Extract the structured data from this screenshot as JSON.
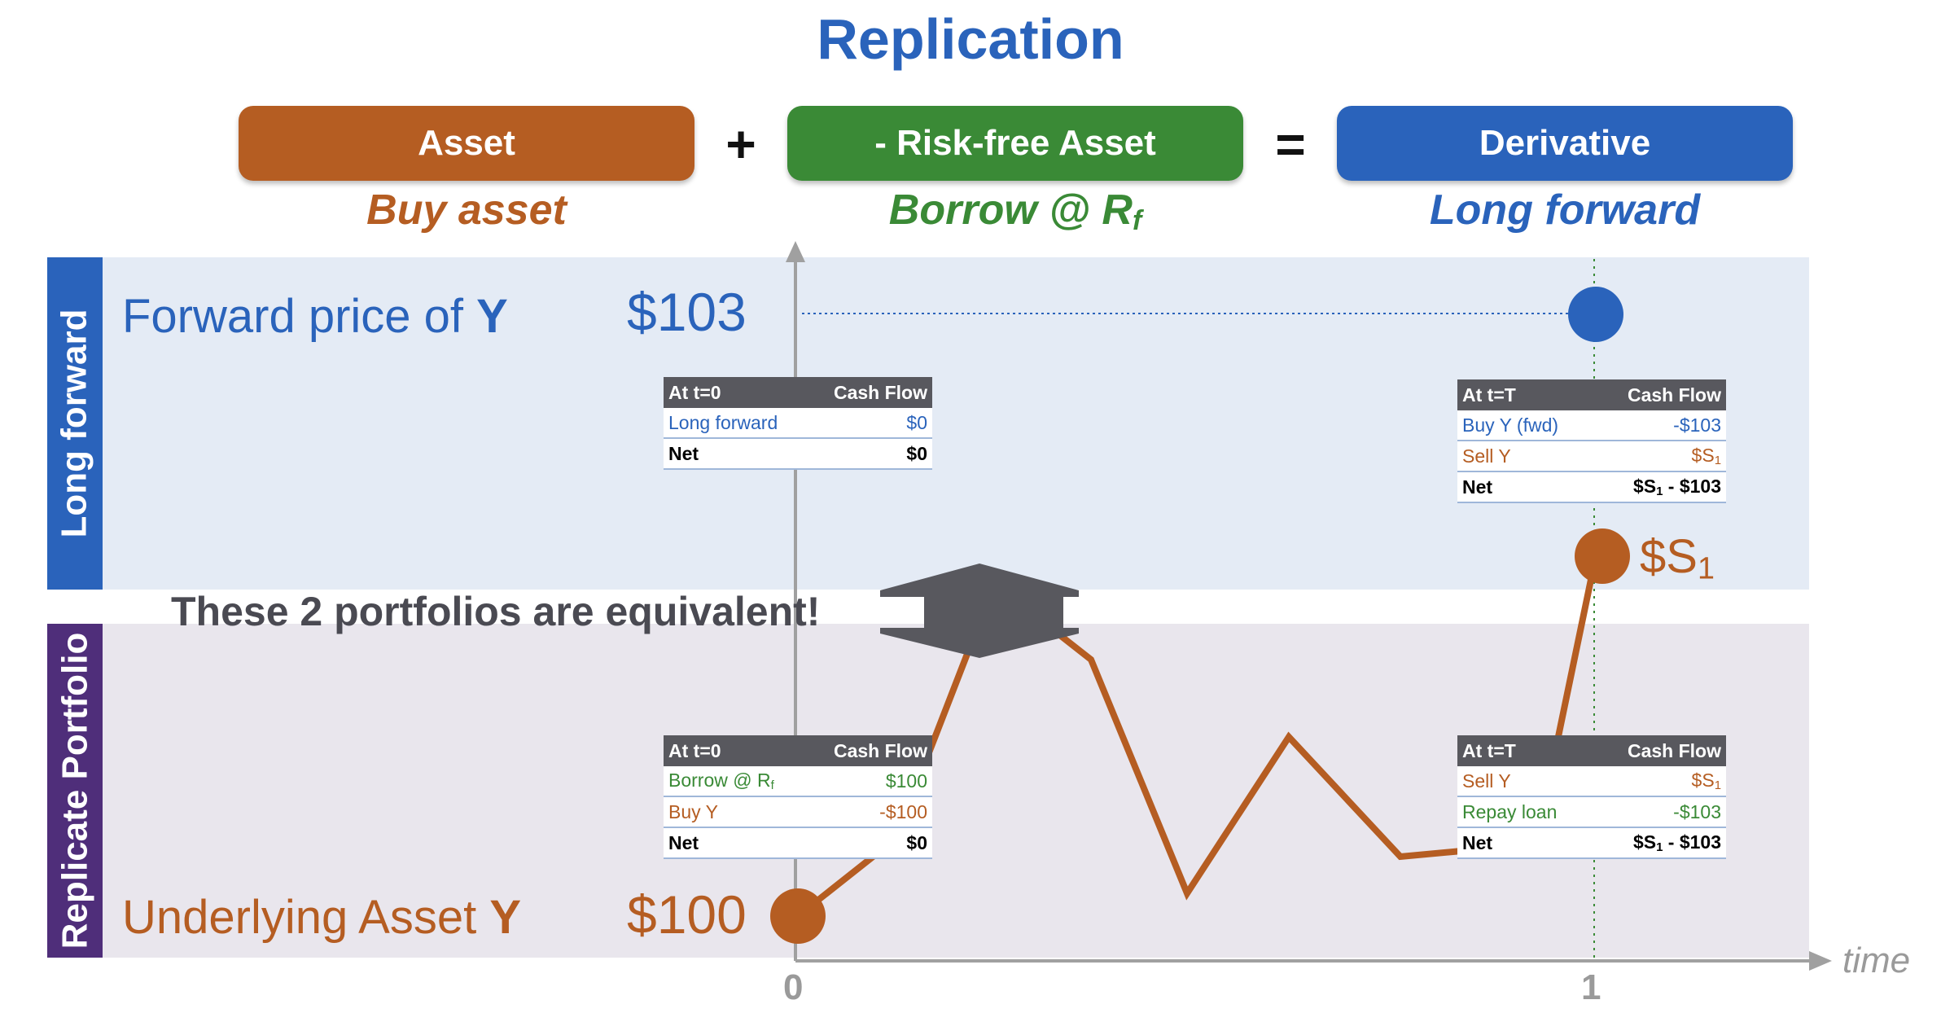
{
  "title": "Replication",
  "equation": {
    "asset": "Asset",
    "plus": "+",
    "riskfree": "- Risk-free Asset",
    "equals": "=",
    "derivative": "Derivative",
    "asset_sub": "Buy asset",
    "riskfree_sub": "Borrow @ R",
    "riskfree_sub_script": "f",
    "derivative_sub": "Long forward"
  },
  "bands": {
    "top_label": "Long forward",
    "bottom_label": "Replicate Portfolio"
  },
  "forward": {
    "text": "Forward price of ",
    "bold": "Y",
    "price": "$103"
  },
  "underlying": {
    "text": "Underlying Asset ",
    "bold": "Y",
    "price": "$100"
  },
  "s1_label": "$S",
  "s1_sub": "1",
  "equivalent_text": "These 2 portfolios are equivalent!",
  "axis": {
    "tick0": "0",
    "tick1": "1",
    "time_label": "time"
  },
  "tables": {
    "fwd_t0": {
      "header": [
        "At t=0",
        "Cash Flow"
      ],
      "rows": [
        [
          "Long forward",
          "$0"
        ]
      ],
      "net": [
        "Net",
        "$0"
      ]
    },
    "fwd_tT": {
      "header": [
        "At t=T",
        "Cash Flow"
      ],
      "rows": [
        [
          "Buy Y (fwd)",
          "-$103"
        ],
        [
          "Sell Y",
          "$S",
          "1"
        ]
      ],
      "net": [
        "Net",
        "$S",
        "1",
        " - $103"
      ]
    },
    "rep_t0": {
      "header": [
        "At t=0",
        "Cash Flow"
      ],
      "rows": [
        [
          "Borrow @ R",
          "f",
          "$100"
        ],
        [
          "Buy Y",
          "-$100"
        ]
      ],
      "net": [
        "Net",
        "$0"
      ]
    },
    "rep_tT": {
      "header": [
        "At t=T",
        "Cash Flow"
      ],
      "rows": [
        [
          "Sell Y",
          "$S",
          "1"
        ],
        [
          "Repay loan",
          "-$103"
        ]
      ],
      "net": [
        "Net",
        "$S",
        "1",
        " - $103"
      ]
    }
  },
  "colors": {
    "blue": "#2a63bb",
    "orange": "#b55d22",
    "green": "#3a8a36",
    "top_band": "#e4ebf5",
    "bottom_band": "#e9e6ed",
    "side_top": "#2a63bb",
    "side_bottom": "#4f2e7a"
  }
}
